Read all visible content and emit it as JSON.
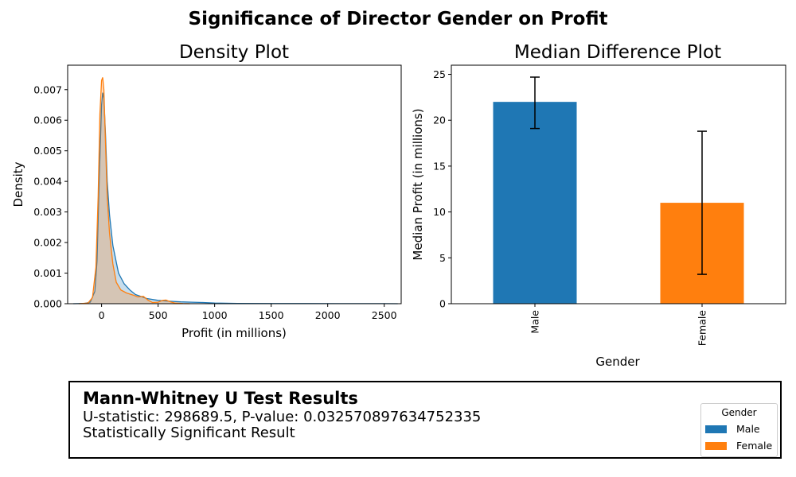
{
  "suptitle": "Significance of Director Gender on Profit",
  "colors": {
    "male": "#1f77b4",
    "female": "#ff7f0e",
    "fill_overlap": "#b8a085"
  },
  "chart_data": [
    {
      "type": "area",
      "title": "Density Plot",
      "xlabel": "Profit (in millions)",
      "ylabel": "Density",
      "xlim": [
        -300,
        2650
      ],
      "ylim": [
        0,
        0.0078
      ],
      "xticks": [
        0,
        500,
        1000,
        1500,
        2000,
        2500
      ],
      "yticks": [
        0.0,
        0.001,
        0.002,
        0.003,
        0.004,
        0.005,
        0.006,
        0.007
      ],
      "ytick_labels": [
        "0.000",
        "0.001",
        "0.002",
        "0.003",
        "0.004",
        "0.005",
        "0.006",
        "0.007"
      ],
      "series": [
        {
          "name": "Male",
          "x": [
            -250,
            -150,
            -100,
            -60,
            -40,
            -20,
            0,
            10,
            20,
            35,
            50,
            70,
            100,
            150,
            200,
            250,
            300,
            400,
            500,
            600,
            700,
            800,
            900,
            1000,
            1200,
            1500,
            1800,
            2100,
            2500,
            2620
          ],
          "y": [
            0.0,
            1e-05,
            5e-05,
            0.0004,
            0.0014,
            0.0042,
            0.0065,
            0.0069,
            0.0067,
            0.0055,
            0.004,
            0.0029,
            0.0019,
            0.001,
            0.00065,
            0.00045,
            0.0003,
            0.00017,
            0.00011,
            8e-05,
            6e-05,
            5e-05,
            4e-05,
            2e-05,
            1e-05,
            5e-06,
            4e-06,
            3e-06,
            2e-06,
            0.0
          ]
        },
        {
          "name": "Female",
          "x": [
            -200,
            -120,
            -80,
            -50,
            -30,
            -15,
            0,
            10,
            20,
            35,
            50,
            70,
            100,
            130,
            170,
            220,
            280,
            320,
            370,
            410,
            450,
            500,
            540,
            570,
            610,
            650,
            720,
            780
          ],
          "y": [
            0.0,
            2e-05,
            0.0002,
            0.0012,
            0.0035,
            0.0062,
            0.0073,
            0.0074,
            0.007,
            0.0052,
            0.0035,
            0.0023,
            0.0013,
            0.0007,
            0.00045,
            0.00035,
            0.00028,
            0.00022,
            0.00024,
            0.00012,
            4e-05,
            5e-05,
            0.00011,
            0.00012,
            6e-05,
            2e-05,
            5e-06,
            0.0
          ]
        }
      ]
    },
    {
      "type": "bar",
      "title": "Median Difference Plot",
      "xlabel": "Gender",
      "ylabel": "Median Profit (in millions)",
      "categories": [
        "Male",
        "Female"
      ],
      "values": [
        22,
        11
      ],
      "error_low": [
        19.1,
        3.2
      ],
      "error_high": [
        24.7,
        18.8
      ],
      "ylim": [
        0,
        26
      ],
      "yticks": [
        0,
        5,
        10,
        15,
        20,
        25
      ]
    }
  ],
  "results": {
    "title": "Mann-Whitney U Test Results",
    "stats_line": "U-statistic: 298689.5, P-value: 0.032570897634752335",
    "conclusion": "Statistically Significant Result"
  },
  "legend": {
    "title": "Gender",
    "items": [
      {
        "label": "Male",
        "color": "#1f77b4"
      },
      {
        "label": "Female",
        "color": "#ff7f0e"
      }
    ]
  }
}
